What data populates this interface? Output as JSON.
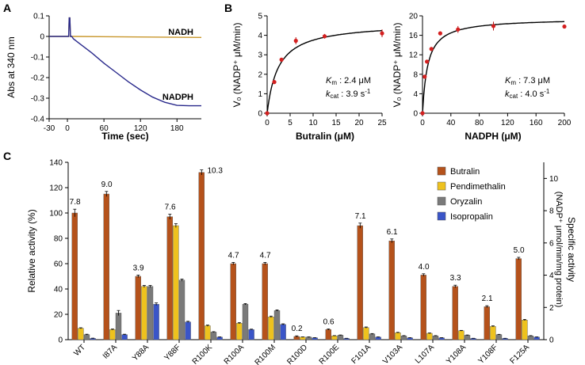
{
  "chart_data": [
    {
      "type": "line",
      "panel": "A",
      "xlabel": "Time (sec)",
      "ylabel": "Abs at 340 nm",
      "xlim": [
        -30,
        220
      ],
      "ylim": [
        -0.4,
        0.1
      ],
      "xticks": [
        -30,
        0,
        60,
        120,
        180
      ],
      "yticks": [
        0.1,
        0,
        -0.1,
        -0.2,
        -0.3,
        -0.4
      ],
      "series": [
        {
          "name": "NADH",
          "color": "#c8962a",
          "x": [
            -30,
            0,
            2,
            3,
            4,
            5,
            7,
            220
          ],
          "y": [
            0,
            0,
            0,
            0.09,
            0.09,
            0,
            0,
            -0.005
          ]
        },
        {
          "name": "NADPH",
          "color": "#2a2a8c",
          "x": [
            -30,
            0,
            2,
            3,
            4,
            5,
            7,
            10,
            20,
            40,
            60,
            80,
            100,
            120,
            140,
            160,
            180,
            200,
            220
          ],
          "y": [
            0,
            0,
            0,
            0.09,
            0.09,
            0,
            0,
            -0.012,
            -0.035,
            -0.08,
            -0.13,
            -0.175,
            -0.22,
            -0.26,
            -0.295,
            -0.32,
            -0.335,
            -0.337,
            -0.337
          ]
        }
      ]
    },
    {
      "type": "scatter",
      "panel": "B",
      "xlabel": "Butralin (μM)",
      "ylabel": "V₀ (NADP⁺ μM/min)",
      "xlim": [
        0,
        25
      ],
      "ylim": [
        0,
        5
      ],
      "xticks": [
        0,
        5,
        10,
        15,
        20,
        25
      ],
      "yticks": [
        0,
        1,
        2,
        3,
        4,
        5
      ],
      "points": {
        "x": [
          0,
          1.56,
          3.125,
          6.25,
          12.5,
          25
        ],
        "y": [
          0,
          1.6,
          2.75,
          3.72,
          3.95,
          4.1
        ],
        "err": [
          0,
          0.05,
          0.08,
          0.18,
          0.12,
          0.2
        ]
      },
      "fit": {
        "vmax": 4.65,
        "km": 2.4
      },
      "km_label": "K",
      "km_sub": "m",
      "km_text": " : 2.4 μM",
      "kcat_label": "k",
      "kcat_sub": "cat",
      "kcat_text": " : 3.9 s",
      "kcat_sup": "-1"
    },
    {
      "type": "scatter",
      "panel": "B2",
      "xlabel": "NADPH (μM)",
      "ylabel": "V₀ (NADP⁺ μM/min)",
      "xlim": [
        0,
        200
      ],
      "ylim": [
        0,
        20
      ],
      "xticks": [
        0,
        40,
        80,
        120,
        160,
        200
      ],
      "yticks": [
        0,
        4,
        8,
        12,
        16,
        20
      ],
      "points": {
        "x": [
          0,
          3.125,
          6.25,
          12.5,
          25,
          50,
          100,
          200
        ],
        "y": [
          0,
          7.5,
          10.6,
          13.2,
          16.4,
          17.2,
          17.9,
          17.8
        ],
        "err": [
          0,
          0.3,
          0.3,
          0.4,
          0.3,
          0.7,
          0.9,
          0.4
        ]
      },
      "fit": {
        "vmax": 19.5,
        "km": 7.3
      },
      "km_label": "K",
      "km_sub": "m",
      "km_text": " : 7.3 μM",
      "kcat_label": "k",
      "kcat_sub": "cat",
      "kcat_text": " : 4.0 s",
      "kcat_sup": "-1"
    },
    {
      "type": "bar",
      "panel": "C",
      "ylabel": "Relative activity (%)",
      "ylabel_right_1": "Specific activity",
      "ylabel_right_2": "(NADP⁺ μmol/min/mg protein)",
      "ylim": [
        0,
        140
      ],
      "yticks": [
        0,
        20,
        40,
        60,
        80,
        100,
        120,
        140
      ],
      "ylim_right": [
        0,
        11
      ],
      "yticks_right": [
        0,
        2,
        4,
        6,
        8,
        10
      ],
      "categories": [
        "WT",
        "I87A",
        "Y88A",
        "Y88F",
        "R100K",
        "R100A",
        "R100M",
        "R100D",
        "R100E",
        "F101A",
        "V103A",
        "L107A",
        "Y108A",
        "Y108F",
        "F125A"
      ],
      "series": [
        {
          "name": "Butralin",
          "color": "#b5521b",
          "values": [
            100,
            115,
            50,
            97,
            132,
            60,
            60,
            2.5,
            8,
            90,
            78,
            51,
            42,
            26,
            64
          ],
          "err": [
            3,
            2,
            1,
            2,
            2,
            1,
            1,
            0.5,
            0.5,
            2,
            1.5,
            1,
            1,
            0.8,
            1
          ]
        },
        {
          "name": "Pendimethalin",
          "color": "#eec21e",
          "values": [
            9,
            8,
            42,
            90,
            11,
            13,
            18,
            2,
            3,
            9.5,
            5.5,
            5,
            7,
            10.5,
            15.5
          ],
          "err": [
            0.4,
            0.4,
            0.8,
            1.5,
            0.5,
            0.5,
            0.6,
            0.2,
            0.2,
            0.5,
            0.3,
            0.3,
            0.3,
            0.4,
            0.5
          ]
        },
        {
          "name": "Oryzalin",
          "color": "#7a7a7a",
          "values": [
            4,
            21,
            42,
            47,
            6,
            28,
            23,
            2,
            3.5,
            4.5,
            3,
            3,
            3.5,
            4,
            3
          ],
          "err": [
            0.3,
            2,
            0.8,
            0.8,
            0.3,
            0.5,
            0.5,
            0.2,
            0.2,
            0.3,
            0.2,
            0.2,
            0.2,
            0.2,
            0.2
          ]
        },
        {
          "name": "Isopropalin",
          "color": "#3a55c8",
          "values": [
            1,
            4,
            28,
            14,
            2,
            8,
            12,
            1.5,
            1,
            2,
            1.5,
            1.5,
            1,
            1,
            2
          ],
          "err": [
            0.2,
            0.3,
            1,
            0.5,
            0.2,
            0.3,
            0.5,
            0.1,
            0.1,
            0.2,
            0.1,
            0.1,
            0.1,
            0.1,
            0.2
          ]
        }
      ],
      "data_labels": [
        "7.8",
        "9.0",
        "3.9",
        "7.6",
        "10.3",
        "4.7",
        "4.7",
        "0.2",
        "0.6",
        "7.1",
        "6.1",
        "4.0",
        "3.3",
        "2.1",
        "5.0"
      ]
    }
  ]
}
